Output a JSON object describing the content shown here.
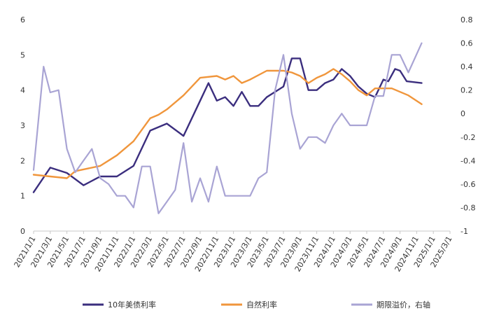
{
  "chart_data": {
    "type": "line",
    "x": [
      "2021/1/1",
      "2021/3/1",
      "2021/5/1",
      "2021/7/1",
      "2021/9/1",
      "2021/11/1",
      "2022/1/1",
      "2022/3/1",
      "2022/5/1",
      "2022/7/1",
      "2022/9/1",
      "2022/11/1",
      "2023/1/1",
      "2023/3/1",
      "2023/5/1",
      "2023/7/1",
      "2023/9/1",
      "2023/11/1",
      "2024/1/1",
      "2024/3/1",
      "2024/5/1",
      "2024/7/1",
      "2024/9/1",
      "2024/11/1",
      "2025/1/1",
      "2025/3/1"
    ],
    "y_left": {
      "min": 0,
      "max": 6,
      "ticks": [
        "0",
        "1",
        "2",
        "3",
        "4",
        "5",
        "6"
      ]
    },
    "y_right": {
      "min": -1,
      "max": 0.8,
      "ticks": [
        "-1",
        "-0.8",
        "-0.6",
        "-0.4",
        "-0.2",
        "0",
        "0.2",
        "0.4",
        "0.6",
        "0.8"
      ]
    },
    "series": [
      {
        "name": "10年美债利率",
        "axis": "left",
        "color": "#3b2e7e",
        "points": [
          [
            0,
            1.1
          ],
          [
            1,
            1.8
          ],
          [
            2,
            1.65
          ],
          [
            3,
            1.3
          ],
          [
            4,
            1.55
          ],
          [
            5,
            1.55
          ],
          [
            6,
            1.85
          ],
          [
            7,
            2.85
          ],
          [
            8,
            3.05
          ],
          [
            9,
            2.7
          ],
          [
            10,
            3.7
          ],
          [
            10.5,
            4.2
          ],
          [
            11,
            3.7
          ],
          [
            11.5,
            3.8
          ],
          [
            12,
            3.55
          ],
          [
            12.5,
            3.95
          ],
          [
            13,
            3.55
          ],
          [
            13.5,
            3.55
          ],
          [
            14,
            3.8
          ],
          [
            15,
            4.1
          ],
          [
            15.5,
            4.9
          ],
          [
            16,
            4.9
          ],
          [
            16.5,
            4.0
          ],
          [
            17,
            4.0
          ],
          [
            17.5,
            4.2
          ],
          [
            18,
            4.3
          ],
          [
            18.5,
            4.6
          ],
          [
            19,
            4.4
          ],
          [
            19.5,
            4.1
          ],
          [
            20,
            3.9
          ],
          [
            20.5,
            3.8
          ],
          [
            21,
            4.3
          ],
          [
            21.3,
            4.25
          ],
          [
            21.7,
            4.6
          ],
          [
            22,
            4.55
          ],
          [
            22.4,
            4.25
          ],
          [
            23.3,
            4.2
          ]
        ]
      },
      {
        "name": "自然利率",
        "axis": "left",
        "color": "#f0963c",
        "points": [
          [
            0,
            1.6
          ],
          [
            1,
            1.55
          ],
          [
            2,
            1.5
          ],
          [
            2.5,
            1.7
          ],
          [
            3,
            1.75
          ],
          [
            4,
            1.85
          ],
          [
            5,
            2.15
          ],
          [
            6,
            2.55
          ],
          [
            7,
            3.2
          ],
          [
            7.5,
            3.3
          ],
          [
            8,
            3.45
          ],
          [
            9,
            3.85
          ],
          [
            10,
            4.35
          ],
          [
            11,
            4.4
          ],
          [
            11.5,
            4.3
          ],
          [
            12,
            4.4
          ],
          [
            12.5,
            4.2
          ],
          [
            13,
            4.3
          ],
          [
            14,
            4.55
          ],
          [
            15,
            4.55
          ],
          [
            15.5,
            4.5
          ],
          [
            16,
            4.4
          ],
          [
            16.5,
            4.2
          ],
          [
            17,
            4.35
          ],
          [
            17.5,
            4.45
          ],
          [
            18,
            4.6
          ],
          [
            18.5,
            4.45
          ],
          [
            19,
            4.25
          ],
          [
            19.5,
            4.0
          ],
          [
            20,
            3.85
          ],
          [
            20.5,
            4.05
          ],
          [
            21,
            4.05
          ],
          [
            21.5,
            4.05
          ],
          [
            22,
            3.95
          ],
          [
            22.5,
            3.85
          ],
          [
            23.3,
            3.6
          ]
        ]
      },
      {
        "name": "期限溢价，右轴",
        "axis": "right",
        "color": "#a9a4d4",
        "points": [
          [
            0,
            -0.48
          ],
          [
            0.6,
            0.4
          ],
          [
            1,
            0.18
          ],
          [
            1.5,
            0.2
          ],
          [
            2,
            -0.3
          ],
          [
            2.5,
            -0.5
          ],
          [
            3,
            -0.4
          ],
          [
            3.5,
            -0.3
          ],
          [
            4,
            -0.55
          ],
          [
            4.5,
            -0.6
          ],
          [
            5,
            -0.7
          ],
          [
            5.5,
            -0.7
          ],
          [
            6,
            -0.8
          ],
          [
            6.5,
            -0.45
          ],
          [
            7,
            -0.45
          ],
          [
            7.5,
            -0.85
          ],
          [
            8,
            -0.75
          ],
          [
            8.5,
            -0.65
          ],
          [
            9,
            -0.25
          ],
          [
            9.5,
            -0.75
          ],
          [
            10,
            -0.55
          ],
          [
            10.5,
            -0.75
          ],
          [
            11,
            -0.45
          ],
          [
            11.5,
            -0.7
          ],
          [
            12,
            -0.7
          ],
          [
            12.5,
            -0.7
          ],
          [
            13,
            -0.7
          ],
          [
            13.5,
            -0.55
          ],
          [
            14,
            -0.5
          ],
          [
            14.5,
            0.2
          ],
          [
            15,
            0.5
          ],
          [
            15.5,
            0.0
          ],
          [
            16,
            -0.3
          ],
          [
            16.5,
            -0.2
          ],
          [
            17,
            -0.2
          ],
          [
            17.5,
            -0.25
          ],
          [
            18,
            -0.1
          ],
          [
            18.5,
            0.0
          ],
          [
            19,
            -0.1
          ],
          [
            19.5,
            -0.1
          ],
          [
            20,
            -0.1
          ],
          [
            20.5,
            0.15
          ],
          [
            21,
            0.15
          ],
          [
            21.5,
            0.5
          ],
          [
            22,
            0.5
          ],
          [
            22.5,
            0.35
          ],
          [
            23.3,
            0.6
          ]
        ]
      }
    ]
  }
}
